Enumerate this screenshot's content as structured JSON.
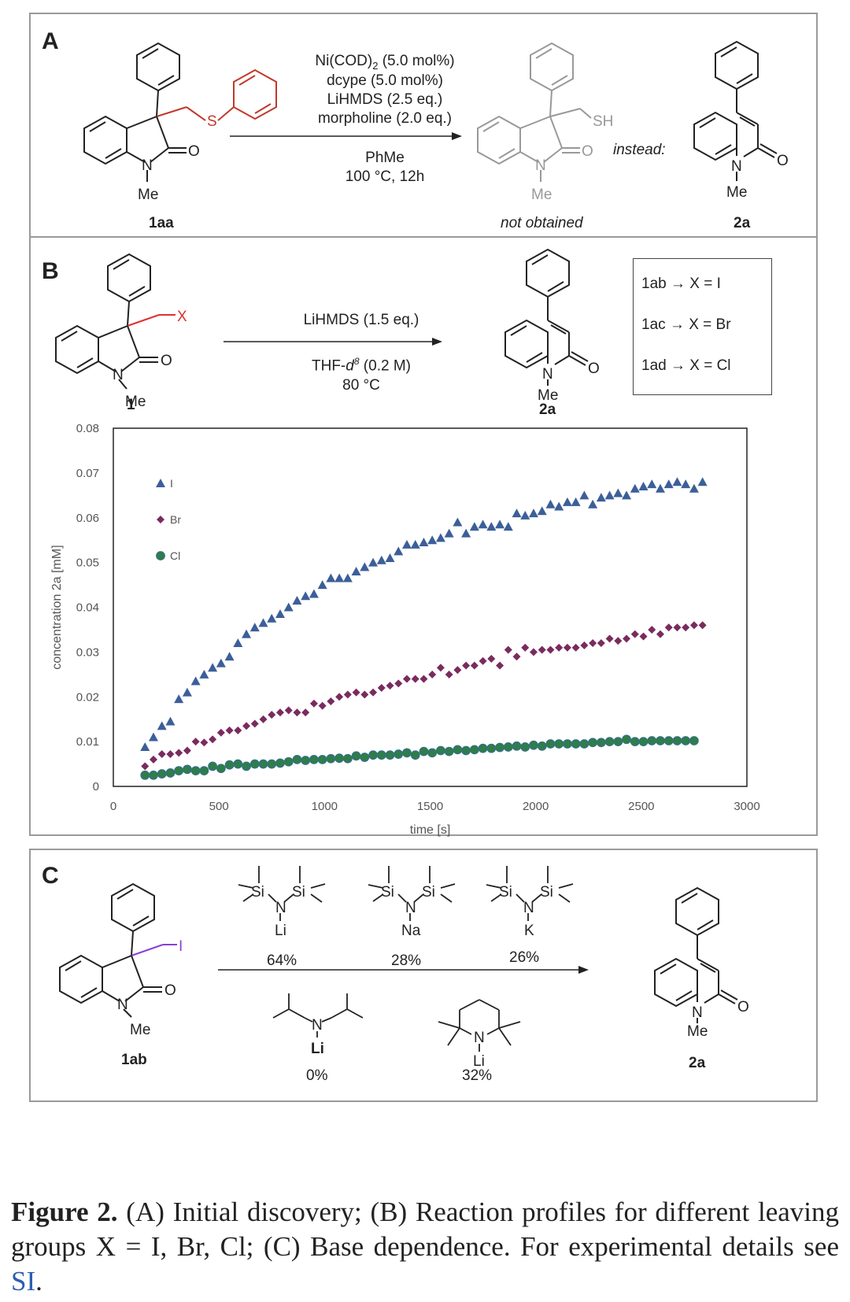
{
  "panel_a": {
    "label": "A",
    "reagents": [
      "Ni(COD)",
      "dcype (5.0 mol%)",
      "LiHMDS (2.5 eq.)",
      "morpholine (2.0 eq.)",
      "PhMe",
      "100 °C, 12h"
    ],
    "reagent_sub": "2",
    "reagent_line1_suffix": " (5.0 mol%)",
    "start_label": "1aa",
    "not_obtained": "not obtained",
    "instead": "instead:",
    "product_label": "2a",
    "atoms": {
      "S": "S",
      "O": "O",
      "N": "N",
      "Me": "Me",
      "SH": "SH"
    }
  },
  "panel_b": {
    "label": "B",
    "reagent_top": "LiHMDS (1.5 eq.)",
    "solvent_pre": "THF-",
    "solvent_d": "d",
    "solvent_sup": "8",
    "solvent_post": " (0.2 M)",
    "temp": "80 °C",
    "start_label": "1",
    "product_label": "2a",
    "substituent": "X",
    "legend_box": [
      "1ab → X = I",
      "1ac → X = Br",
      "1ad → X = Cl"
    ]
  },
  "chart_data": {
    "type": "scatter",
    "title": "",
    "xlabel": "time [s]",
    "ylabel": "concentration 2a [mM]",
    "xlim": [
      0,
      3000
    ],
    "ylim": [
      0,
      0.08
    ],
    "xticks": [
      "0",
      "500",
      "1000",
      "1500",
      "2000",
      "2500",
      "3000"
    ],
    "yticks": [
      "0",
      "0.01",
      "0.02",
      "0.03",
      "0.04",
      "0.05",
      "0.06",
      "0.07",
      "0.08"
    ],
    "grid": false,
    "legend_position": "top-left",
    "series": [
      {
        "name": "I",
        "marker": "triangle",
        "color": "#3c5f99",
        "x": [
          150,
          190,
          230,
          270,
          310,
          350,
          390,
          430,
          470,
          510,
          550,
          590,
          630,
          670,
          710,
          750,
          790,
          830,
          870,
          910,
          950,
          990,
          1030,
          1070,
          1110,
          1150,
          1190,
          1230,
          1270,
          1310,
          1350,
          1390,
          1430,
          1470,
          1510,
          1550,
          1590,
          1630,
          1670,
          1710,
          1750,
          1790,
          1830,
          1870,
          1910,
          1950,
          1990,
          2030,
          2070,
          2110,
          2150,
          2190,
          2230,
          2270,
          2310,
          2350,
          2390,
          2430,
          2470,
          2510,
          2550,
          2590,
          2630,
          2670,
          2710,
          2750,
          2790
        ],
        "y": [
          0.0088,
          0.011,
          0.0135,
          0.0145,
          0.0195,
          0.021,
          0.0235,
          0.025,
          0.0265,
          0.0275,
          0.029,
          0.032,
          0.034,
          0.0355,
          0.0365,
          0.0375,
          0.0385,
          0.04,
          0.0415,
          0.0425,
          0.043,
          0.045,
          0.0465,
          0.0465,
          0.0465,
          0.048,
          0.049,
          0.05,
          0.0505,
          0.051,
          0.0525,
          0.054,
          0.054,
          0.0545,
          0.055,
          0.0555,
          0.0565,
          0.059,
          0.0565,
          0.058,
          0.0585,
          0.058,
          0.0585,
          0.058,
          0.061,
          0.0605,
          0.061,
          0.0615,
          0.063,
          0.0625,
          0.0635,
          0.0635,
          0.065,
          0.063,
          0.0645,
          0.065,
          0.0655,
          0.065,
          0.0665,
          0.067,
          0.0675,
          0.0665,
          0.0675,
          0.068,
          0.0675,
          0.0665,
          0.068
        ]
      },
      {
        "name": "Br",
        "marker": "diamond",
        "color": "#7a2b5e",
        "x": [
          150,
          190,
          230,
          270,
          310,
          350,
          390,
          430,
          470,
          510,
          550,
          590,
          630,
          670,
          710,
          750,
          790,
          830,
          870,
          910,
          950,
          990,
          1030,
          1070,
          1110,
          1150,
          1190,
          1230,
          1270,
          1310,
          1350,
          1390,
          1430,
          1470,
          1510,
          1550,
          1590,
          1630,
          1670,
          1710,
          1750,
          1790,
          1830,
          1870,
          1910,
          1950,
          1990,
          2030,
          2070,
          2110,
          2150,
          2190,
          2230,
          2270,
          2310,
          2350,
          2390,
          2430,
          2470,
          2510,
          2550,
          2590,
          2630,
          2670,
          2710,
          2750,
          2790
        ],
        "y": [
          0.0045,
          0.006,
          0.0072,
          0.0072,
          0.0075,
          0.008,
          0.01,
          0.0098,
          0.0105,
          0.012,
          0.0125,
          0.0125,
          0.0135,
          0.014,
          0.015,
          0.016,
          0.0165,
          0.017,
          0.0165,
          0.0165,
          0.0185,
          0.018,
          0.019,
          0.02,
          0.0205,
          0.021,
          0.0205,
          0.021,
          0.022,
          0.0225,
          0.023,
          0.024,
          0.024,
          0.024,
          0.025,
          0.0265,
          0.025,
          0.026,
          0.027,
          0.027,
          0.028,
          0.0285,
          0.027,
          0.0305,
          0.029,
          0.031,
          0.03,
          0.0305,
          0.0305,
          0.031,
          0.031,
          0.031,
          0.0315,
          0.032,
          0.032,
          0.033,
          0.0325,
          0.033,
          0.034,
          0.0335,
          0.035,
          0.034,
          0.0355,
          0.0355,
          0.0355,
          0.036,
          0.036
        ]
      },
      {
        "name": "Cl",
        "marker": "circle",
        "color": "#2e7d4a",
        "x": [
          150,
          190,
          230,
          270,
          310,
          350,
          390,
          430,
          470,
          510,
          550,
          590,
          630,
          670,
          710,
          750,
          790,
          830,
          870,
          910,
          950,
          990,
          1030,
          1070,
          1110,
          1150,
          1190,
          1230,
          1270,
          1310,
          1350,
          1390,
          1430,
          1470,
          1510,
          1550,
          1590,
          1630,
          1670,
          1710,
          1750,
          1790,
          1830,
          1870,
          1910,
          1950,
          1990,
          2030,
          2070,
          2110,
          2150,
          2190,
          2230,
          2270,
          2310,
          2350,
          2390,
          2430,
          2470,
          2510,
          2550,
          2590,
          2630,
          2670,
          2710,
          2750
        ],
        "y": [
          0.0025,
          0.0025,
          0.0028,
          0.003,
          0.0035,
          0.0038,
          0.0035,
          0.0035,
          0.0045,
          0.004,
          0.0048,
          0.005,
          0.0045,
          0.005,
          0.005,
          0.005,
          0.0052,
          0.0055,
          0.006,
          0.0058,
          0.006,
          0.006,
          0.0062,
          0.0063,
          0.0062,
          0.0068,
          0.0065,
          0.007,
          0.007,
          0.007,
          0.0072,
          0.0075,
          0.007,
          0.0078,
          0.0075,
          0.008,
          0.0078,
          0.0082,
          0.008,
          0.0082,
          0.0085,
          0.0085,
          0.0087,
          0.0088,
          0.009,
          0.0088,
          0.0092,
          0.009,
          0.0095,
          0.0095,
          0.0095,
          0.0095,
          0.0095,
          0.0098,
          0.0098,
          0.01,
          0.01,
          0.0105,
          0.01,
          0.01,
          0.0102,
          0.0102,
          0.0102,
          0.0102,
          0.0102,
          0.0102
        ]
      }
    ]
  },
  "panel_c": {
    "label": "C",
    "start_label": "1ab",
    "product_label": "2a",
    "substituent": "I",
    "bases_top": [
      {
        "metal": "Li",
        "yield": "64%"
      },
      {
        "metal": "Na",
        "yield": "28%"
      },
      {
        "metal": "K",
        "yield": "26%"
      }
    ],
    "bases_bottom": [
      {
        "metal": "Li",
        "yield": "0%"
      },
      {
        "metal": "Li",
        "yield": "32%"
      }
    ],
    "atoms": {
      "Si": "Si",
      "N": "N",
      "O": "O",
      "Me": "Me"
    }
  },
  "caption": {
    "fig": "Figure 2.",
    "text": " (A) Initial discovery; (B) Reaction profiles for different leaving groups X = I, Br, Cl; (C) Base dependence. For experimental details see ",
    "si": "SI",
    "end": "."
  },
  "colors": {
    "thioether": "#c0392b",
    "halide": "#e03030",
    "iodide": "#8a3fd0",
    "si_link": "#2b5fb0"
  }
}
